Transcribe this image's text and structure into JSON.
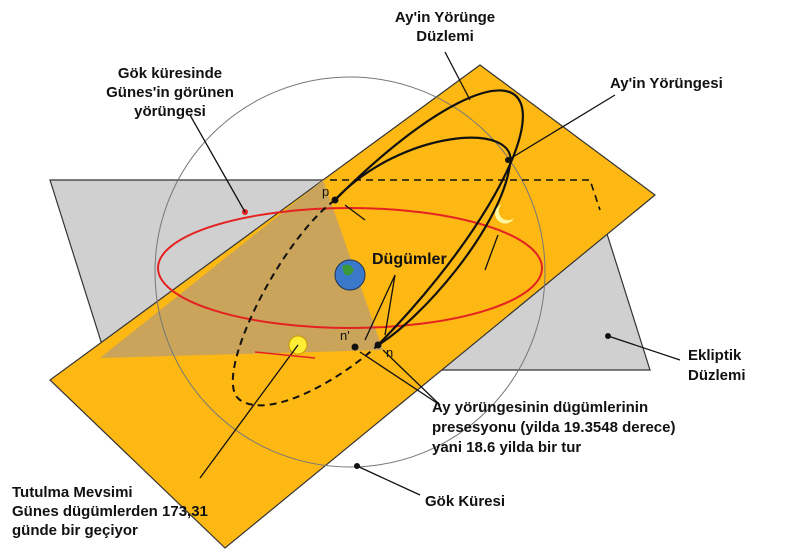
{
  "labels": {
    "moon_orbit_plane": [
      "Ay'in Yörünge",
      "Düzlemi"
    ],
    "sun_path": [
      "Gök küresinde",
      "Günes'in görünen",
      "yörüngesi"
    ],
    "moon_orbit": [
      "Ay'in Yörüngesi"
    ],
    "p": "p",
    "nodes": "Dügümler",
    "n_prime": "n'",
    "n": "n",
    "ecliptic": [
      "Ekliptik",
      "Düzlemi"
    ],
    "precession": [
      "Ay yörüngesinin dügümlerinin",
      "presesyonu (yilda 19.3548 derece)",
      "yani 18.6 yilda bir tur"
    ],
    "eclipse_season": [
      "Tutulma Mevsimi",
      "Günes dügümlerden 173,31",
      "günde bir geçiyor"
    ],
    "celestial_sphere": [
      "Gök Küresi"
    ]
  }
}
